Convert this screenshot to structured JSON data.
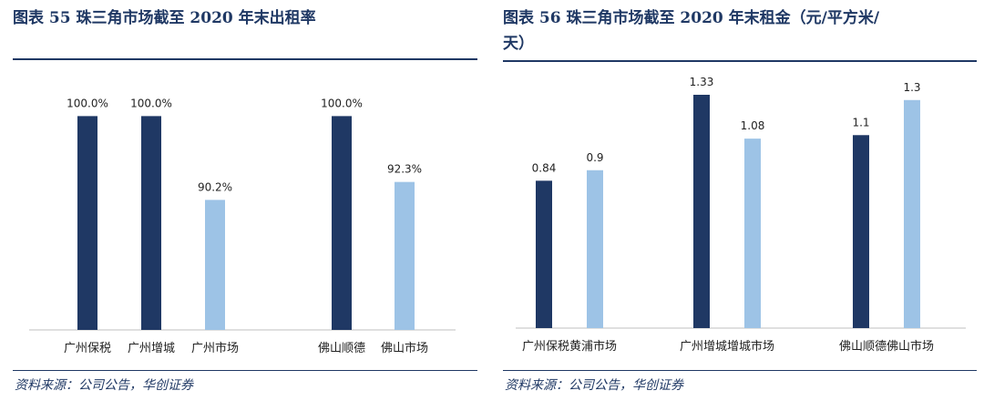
{
  "colors": {
    "dark": "#1f3864",
    "light": "#9dc3e6",
    "text": "#1f3864"
  },
  "source": "资料来源：公司公告，华创证券",
  "chart_data": [
    {
      "type": "bar",
      "title": "图表 55 珠三角市场截至 2020 年末出租率",
      "categories": [
        "广州保税",
        "广州增城",
        "广州市场",
        "佛山顺德",
        "佛山市场"
      ],
      "groups": [
        [
          0,
          1,
          2
        ],
        [
          3,
          4
        ]
      ],
      "values": [
        100.0,
        100.0,
        90.2,
        100.0,
        92.3
      ],
      "value_labels": [
        "100.0%",
        "100.0%",
        "90.2%",
        "100.0%",
        "92.3%"
      ],
      "bar_colors": [
        "dark",
        "dark",
        "light",
        "dark",
        "light"
      ],
      "ylim": [
        75,
        101
      ],
      "grid": false,
      "legend": "none"
    },
    {
      "type": "bar",
      "title": "图表 56 珠三角市场截至 2020 年末租金（元/平方米/天）",
      "title_lines": [
        "图表 56 珠三角市场截至 2020 年末租金（元/平方米/",
        "天）"
      ],
      "categories": [
        "广州保税黄浦市场",
        "广州增城增城市场",
        "佛山顺德佛山市场"
      ],
      "series": [
        {
          "values": [
            0.84,
            1.33,
            1.1
          ],
          "value_labels": [
            "0.84",
            "1.33",
            "1.1"
          ],
          "color": "dark"
        },
        {
          "values": [
            0.9,
            1.08,
            1.3
          ],
          "value_labels": [
            "0.9",
            "1.08",
            "1.3"
          ],
          "color": "light"
        }
      ],
      "ylim": [
        0,
        1.33
      ],
      "grid": false,
      "legend": "none"
    }
  ]
}
